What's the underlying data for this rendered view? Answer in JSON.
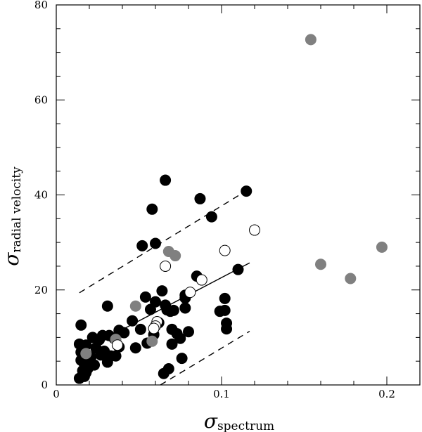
{
  "chart_data": {
    "type": "scatter",
    "xlabel": {
      "symbol": "σ",
      "subscript": "spectrum"
    },
    "ylabel": {
      "symbol": "σ",
      "subscript": "radial velocity"
    },
    "xlim": [
      0,
      0.22
    ],
    "ylim": [
      0,
      80
    ],
    "x_ticks": [
      0,
      0.1,
      0.2
    ],
    "x_tick_labels": [
      "0",
      "0.1",
      "0.2"
    ],
    "y_ticks": [
      0,
      20,
      40,
      60,
      80
    ],
    "y_tick_labels": [
      "0",
      "20",
      "40",
      "60",
      "80"
    ],
    "grid": false,
    "colors": {
      "black": "#000000",
      "gray": "#808080",
      "open": "#ffffff"
    },
    "series": [
      {
        "style": "filled-black",
        "points": [
          [
            0.015,
            12.6
          ],
          [
            0.014,
            8.6
          ],
          [
            0.018,
            8.4
          ],
          [
            0.022,
            10.0
          ],
          [
            0.024,
            7.8
          ],
          [
            0.026,
            9.5
          ],
          [
            0.028,
            10.4
          ],
          [
            0.032,
            10.4
          ],
          [
            0.035,
            9.8
          ],
          [
            0.038,
            11.5
          ],
          [
            0.041,
            11.0
          ],
          [
            0.031,
            16.6
          ],
          [
            0.015,
            5.2
          ],
          [
            0.017,
            4.4
          ],
          [
            0.019,
            3.4
          ],
          [
            0.021,
            5.9
          ],
          [
            0.023,
            4.2
          ],
          [
            0.027,
            6.3
          ],
          [
            0.029,
            7.1
          ],
          [
            0.031,
            4.8
          ],
          [
            0.033,
            6.1
          ],
          [
            0.036,
            6.1
          ],
          [
            0.037,
            8.4
          ],
          [
            0.014,
            1.4
          ],
          [
            0.017,
            1.8
          ],
          [
            0.016,
            3.0
          ],
          [
            0.018,
            2.6
          ],
          [
            0.015,
            6.9
          ],
          [
            0.046,
            13.5
          ],
          [
            0.048,
            7.8
          ],
          [
            0.051,
            11.7
          ],
          [
            0.054,
            18.5
          ],
          [
            0.057,
            15.9
          ],
          [
            0.059,
            10.6
          ],
          [
            0.06,
            17.5
          ],
          [
            0.062,
            13.1
          ],
          [
            0.064,
            19.8
          ],
          [
            0.066,
            16.8
          ],
          [
            0.069,
            15.5
          ],
          [
            0.07,
            11.7
          ],
          [
            0.071,
            15.7
          ],
          [
            0.073,
            10.8
          ],
          [
            0.052,
            29.3
          ],
          [
            0.06,
            29.8
          ],
          [
            0.058,
            37.0
          ],
          [
            0.066,
            43.1
          ],
          [
            0.055,
            8.8
          ],
          [
            0.065,
            2.4
          ],
          [
            0.068,
            3.4
          ],
          [
            0.07,
            8.6
          ],
          [
            0.075,
            9.8
          ],
          [
            0.076,
            5.6
          ],
          [
            0.078,
            18.3
          ],
          [
            0.078,
            16.2
          ],
          [
            0.08,
            11.2
          ],
          [
            0.085,
            22.9
          ],
          [
            0.087,
            39.2
          ],
          [
            0.094,
            35.4
          ],
          [
            0.099,
            15.5
          ],
          [
            0.102,
            15.7
          ],
          [
            0.102,
            18.2
          ],
          [
            0.103,
            13.0
          ],
          [
            0.103,
            11.8
          ],
          [
            0.11,
            24.3
          ],
          [
            0.115,
            40.8
          ],
          [
            0.078,
            18.9
          ],
          [
            0.067,
            15.8
          ],
          [
            0.038,
            8.0
          ]
        ]
      },
      {
        "style": "filled-gray",
        "points": [
          [
            0.154,
            72.7
          ],
          [
            0.16,
            25.4
          ],
          [
            0.178,
            22.4
          ],
          [
            0.197,
            29.0
          ],
          [
            0.068,
            28.1
          ],
          [
            0.072,
            27.2
          ],
          [
            0.048,
            16.6
          ],
          [
            0.058,
            9.2
          ],
          [
            0.018,
            6.6
          ],
          [
            0.036,
            9.6
          ]
        ]
      },
      {
        "style": "open",
        "points": [
          [
            0.12,
            32.6
          ],
          [
            0.102,
            28.3
          ],
          [
            0.066,
            25.0
          ],
          [
            0.088,
            22.1
          ],
          [
            0.081,
            19.5
          ],
          [
            0.061,
            13.3
          ],
          [
            0.06,
            12.4
          ],
          [
            0.059,
            11.9
          ],
          [
            0.037,
            8.4
          ]
        ]
      }
    ],
    "fit_lines": [
      {
        "style": "solid",
        "points": [
          [
            0.015,
            7.1
          ],
          [
            0.117,
            25.7
          ]
        ]
      },
      {
        "style": "dashed",
        "points": [
          [
            0.014,
            19.4
          ],
          [
            0.117,
            41.3
          ]
        ]
      },
      {
        "style": "dashed",
        "points": [
          [
            0.063,
            0.0
          ],
          [
            0.117,
            11.3
          ]
        ]
      }
    ]
  }
}
